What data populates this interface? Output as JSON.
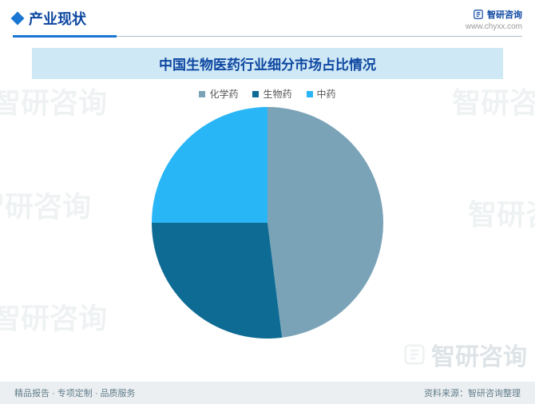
{
  "header": {
    "section_title": "产业现状",
    "brand": "智研咨询",
    "website": "www.chyxx.com"
  },
  "chart": {
    "type": "pie",
    "title": "中国生物医药行业细分市场占比情况",
    "title_bg": "#cfe8f5",
    "title_color": "#0d47a1",
    "title_fontsize": 17,
    "radius": 145,
    "background_color": "#ffffff",
    "series": [
      {
        "label": "化学药",
        "value": 48,
        "color": "#7ba3b8"
      },
      {
        "label": "生物药",
        "value": 27,
        "color": "#0d6b94"
      },
      {
        "label": "中药",
        "value": 25,
        "color": "#29b6f6"
      }
    ],
    "legend_fontsize": 12,
    "legend_color": "#555555"
  },
  "footer": {
    "left": "精品报告 · 专项定制 · 品质服务",
    "right": "资料来源：智研咨询整理"
  },
  "watermark_text": "智研咨询"
}
